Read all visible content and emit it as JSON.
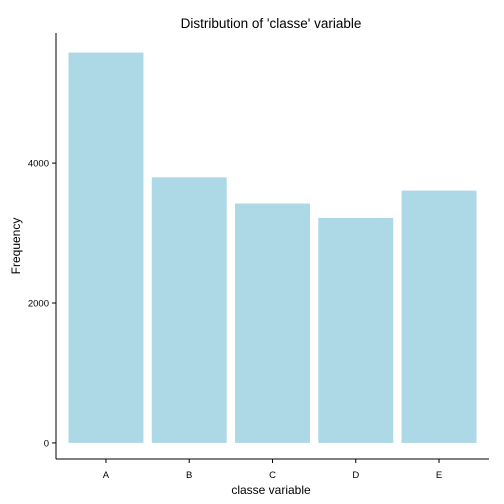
{
  "chart_data": {
    "type": "bar",
    "title": "Distribution of 'classe' variable",
    "xlabel": "classe variable",
    "ylabel": "Frequency",
    "categories": [
      "A",
      "B",
      "C",
      "D",
      "E"
    ],
    "values": [
      5580,
      3797,
      3422,
      3216,
      3607
    ],
    "ylim": [
      -230,
      5860
    ],
    "yticks": [
      0,
      2000,
      4000
    ],
    "ytick_labels": [
      "0",
      "2000",
      "4000"
    ],
    "bar_color": "#add8e6",
    "grid": false,
    "legend": "none"
  }
}
